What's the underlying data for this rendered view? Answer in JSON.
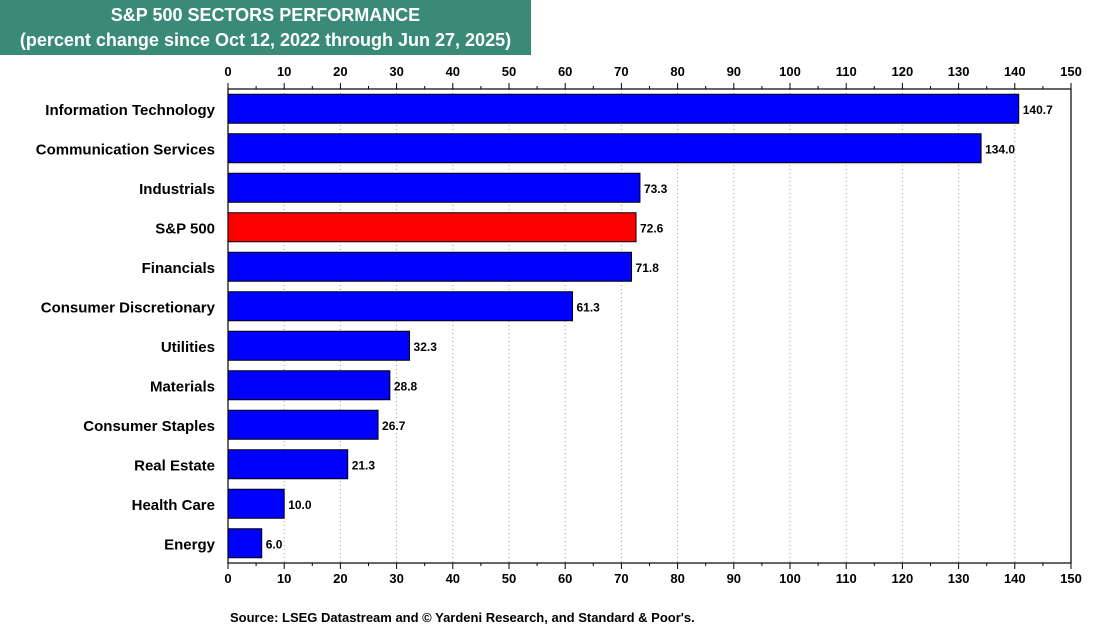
{
  "chart_data": {
    "type": "bar",
    "orientation": "horizontal",
    "title": "S&P 500 SECTORS PERFORMANCE",
    "subtitle": "(percent change since Oct 12, 2022 through Jun 27, 2025)",
    "categories": [
      "Information Technology",
      "Communication Services",
      "Industrials",
      "S&P 500",
      "Financials",
      "Consumer Discretionary",
      "Utilities",
      "Materials",
      "Consumer Staples",
      "Real Estate",
      "Health Care",
      "Energy"
    ],
    "values": [
      140.7,
      134.0,
      73.3,
      72.6,
      71.8,
      61.3,
      32.3,
      28.8,
      26.7,
      21.3,
      10.0,
      6.0
    ],
    "value_labels": [
      "140.7",
      "134.0",
      "73.3",
      "72.6",
      "71.8",
      "61.3",
      "32.3",
      "28.8",
      "26.7",
      "21.3",
      "10.0",
      "6.0"
    ],
    "xlim": [
      0,
      150
    ],
    "xticks": [
      0,
      10,
      20,
      30,
      40,
      50,
      60,
      70,
      80,
      90,
      100,
      110,
      120,
      130,
      140,
      150
    ],
    "xtick_labels": [
      "0",
      "10",
      "20",
      "30",
      "40",
      "50",
      "60",
      "70",
      "80",
      "90",
      "100",
      "110",
      "120",
      "130",
      "140",
      "150"
    ],
    "axis_labels_position": "top-and-bottom",
    "grid": "vertical-dotted",
    "highlight_category": "S&P 500",
    "colors": {
      "bar": "#0000ff",
      "highlight": "#ff0000",
      "title_background": "#3a8a78",
      "title_text": "#ffffff"
    },
    "source": "Source: LSEG Datastream and © Yardeni Research, and Standard & Poor's."
  }
}
